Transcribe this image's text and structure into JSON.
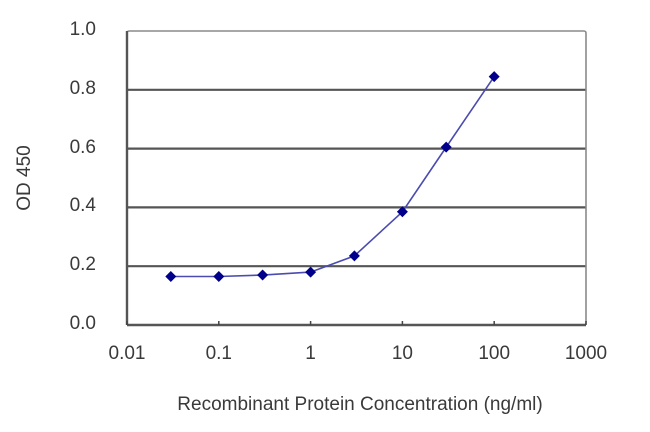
{
  "chart_data": {
    "type": "line",
    "title": "",
    "xlabel": "Recombinant Protein Concentration (ng/ml)",
    "ylabel": "OD 450",
    "xscale": "log",
    "xlim": [
      0.01,
      1000
    ],
    "ylim": [
      0.0,
      1.0
    ],
    "x_ticks": [
      "0.01",
      "0.1",
      "1",
      "10",
      "100",
      "1000"
    ],
    "y_ticks": [
      "0.0",
      "0.2",
      "0.4",
      "0.6",
      "0.8",
      "1.0"
    ],
    "grid": {
      "horizontal": true,
      "vertical": false
    },
    "legend": null,
    "series": [
      {
        "name": "OD 450",
        "color": "#00008B",
        "line_color": "#4B4BB0",
        "marker": "diamond",
        "x": [
          0.03,
          0.1,
          0.3,
          1,
          3,
          10,
          30,
          100
        ],
        "values": [
          0.165,
          0.165,
          0.17,
          0.18,
          0.235,
          0.385,
          0.605,
          0.845
        ]
      }
    ]
  },
  "labels": {
    "xlabel": "Recombinant Protein Concentration (ng/ml)",
    "ylabel": "OD 450"
  }
}
